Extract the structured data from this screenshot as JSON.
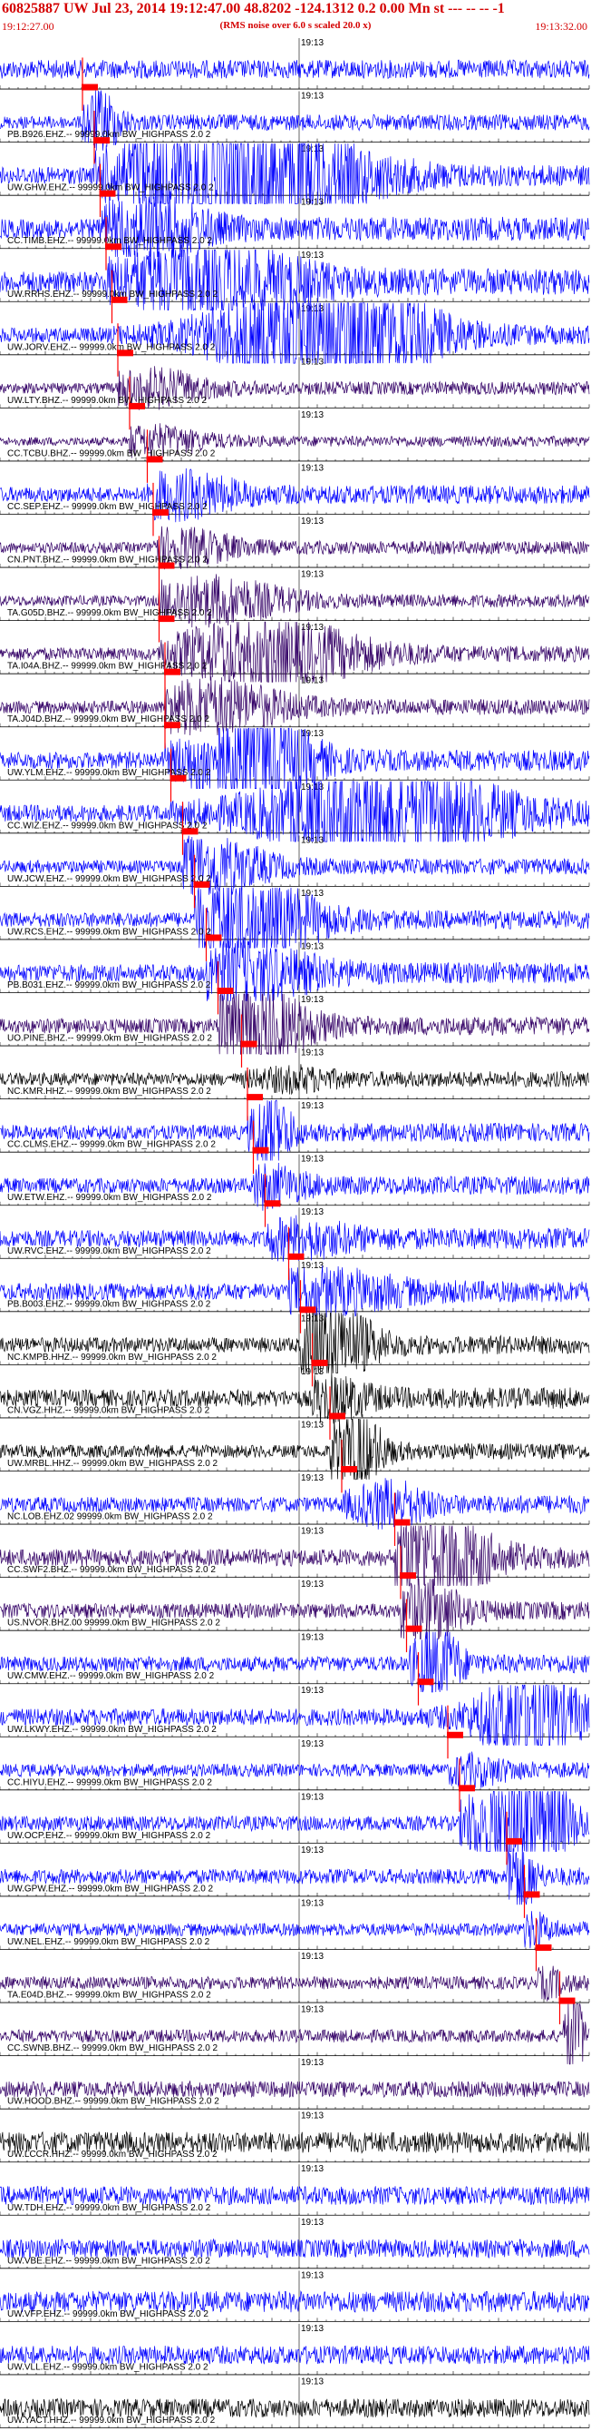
{
  "header": {
    "title": "60825887 UW Jul 23, 2014 19:12:47.00   48.8202 -124.1312  0.2 0.00 Mn st --- -- -- -1",
    "start_time": "19:12:27.00",
    "rms_note": "(RMS noise over 6.0 s scaled 20.0 x)",
    "end_time": "19:13:32.00"
  },
  "chart_data": {
    "type": "line",
    "title": "60825887 UW Jul 23, 2014 19:12:47.00   48.8202 -124.1312  0.2 0.00 Mn st --- -- -- -1",
    "xlabel": "",
    "ylabel": "",
    "time_start": "19:12:27.00",
    "time_end": "19:13:32.00",
    "mid_tick_label": "19:13",
    "colors": {
      "trace_blue": "#0000ff",
      "trace_purple": "#330066",
      "trace_black": "#000000",
      "pick": "#ff0000"
    },
    "traces": [
      {
        "label": "",
        "color": "#0000ff",
        "amp": 0.35,
        "burst": 0.0,
        "burst_pos": 0.0,
        "burst_width": 0.0,
        "pick": null
      },
      {
        "label": "PB.B926.EHZ.-- 99999.0km BW_HIGHPASS  2.0  2",
        "color": "#0000ff",
        "amp": 0.3,
        "burst": 1.1,
        "burst_pos": 0.17,
        "burst_width": 0.05,
        "pick": "0.14"
      },
      {
        "label": "UW.GHW.EHZ.-- 99999.0km BW_HIGHPASS  2.0  2",
        "color": "#0000ff",
        "amp": 0.4,
        "burst": 2.4,
        "burst_pos": 0.4,
        "burst_width": 0.3,
        "pick": "0.16"
      },
      {
        "label": "CC.TIMB.EHZ.-- 99999.0km BW_HIGHPASS  2.0  2",
        "color": "#0000ff",
        "amp": 0.45,
        "burst": 1.0,
        "burst_pos": 0.25,
        "burst_width": 0.15,
        "pick": "0.17"
      },
      {
        "label": "UW.RRHS.EHZ.-- 99999.0km BW_HIGHPASS  2.0  2",
        "color": "#0000ff",
        "amp": 0.5,
        "burst": 1.2,
        "burst_pos": 0.35,
        "burst_width": 0.25,
        "pick": "0.18"
      },
      {
        "label": "UW.JORV.EHZ.-- 99999.0km BW_HIGHPASS  2.0  2",
        "color": "#0000ff",
        "amp": 0.35,
        "burst": 2.6,
        "burst_pos": 0.55,
        "burst_width": 0.25,
        "pick": "0.19"
      },
      {
        "label": "UW.LTY.BHZ.-- 99999.0km BW_HIGHPASS  2.0  2",
        "color": "#330066",
        "amp": 0.25,
        "burst": 0.6,
        "burst_pos": 0.25,
        "burst_width": 0.15,
        "pick": "0.2"
      },
      {
        "label": "CC.TCBU.BHZ.-- 99999.0km BW_HIGHPASS  2.0  2",
        "color": "#330066",
        "amp": 0.2,
        "burst": 0.5,
        "burst_pos": 0.25,
        "burst_width": 0.15,
        "pick": "0.22"
      },
      {
        "label": "CC.SEP.EHZ.-- 99999.0km BW_HIGHPASS  2.0  2",
        "color": "#0000ff",
        "amp": 0.35,
        "burst": 0.7,
        "burst_pos": 0.3,
        "burst_width": 0.15,
        "pick": "0.25"
      },
      {
        "label": "CN.PNT.BHZ.-- 99999.0km BW_HIGHPASS  2.0  2",
        "color": "#330066",
        "amp": 0.25,
        "burst": 0.6,
        "burst_pos": 0.3,
        "burst_width": 0.15,
        "pick": "0.26"
      },
      {
        "label": "TA.G05D.BHZ.-- 99999.0km BW_HIGHPASS  2.0  2",
        "color": "#330066",
        "amp": 0.25,
        "burst": 0.8,
        "burst_pos": 0.35,
        "burst_width": 0.2,
        "pick": "0.27"
      },
      {
        "label": "TA.I04A.BHZ.-- 99999.0km BW_HIGHPASS  2.0  2",
        "color": "#330066",
        "amp": 0.3,
        "burst": 1.2,
        "burst_pos": 0.45,
        "burst_width": 0.25,
        "pick": "0.27"
      },
      {
        "label": "TA.J04D.BHZ.-- 99999.0km BW_HIGHPASS  2.0  2",
        "color": "#330066",
        "amp": 0.3,
        "burst": 0.9,
        "burst_pos": 0.35,
        "burst_width": 0.2,
        "pick": "0.28"
      },
      {
        "label": "UW.YLM.EHZ.-- 99999.0km BW_HIGHPASS  2.0  2",
        "color": "#0000ff",
        "amp": 0.4,
        "burst": 2.0,
        "burst_pos": 0.42,
        "burst_width": 0.15,
        "pick": "0.28"
      },
      {
        "label": "CC.WIZ.EHZ.-- 99999.0km BW_HIGHPASS  2.0  2",
        "color": "#0000ff",
        "amp": 0.4,
        "burst": 1.8,
        "burst_pos": 0.65,
        "burst_width": 0.3,
        "pick": "0.29"
      },
      {
        "label": "UW.JCW.EHZ.-- 99999.0km BW_HIGHPASS  2.0  2",
        "color": "#0000ff",
        "amp": 0.3,
        "burst": 1.0,
        "burst_pos": 0.35,
        "burst_width": 0.15,
        "pick": "0.31"
      },
      {
        "label": "UW.RCS.EHZ.-- 99999.0km BW_HIGHPASS  2.0  2",
        "color": "#0000ff",
        "amp": 0.35,
        "burst": 1.6,
        "burst_pos": 0.4,
        "burst_width": 0.2,
        "pick": "0.33"
      },
      {
        "label": "PB.B031.EHZ.-- 99999.0km BW_HIGHPASS  2.0  2",
        "color": "#0000ff",
        "amp": 0.4,
        "burst": 1.0,
        "burst_pos": 0.4,
        "burst_width": 0.2,
        "pick": "0.35"
      },
      {
        "label": "UO.PINE.BHZ.-- 99999.0km BW_HIGHPASS  2.0  2",
        "color": "#330066",
        "amp": 0.35,
        "burst": 1.4,
        "burst_pos": 0.42,
        "burst_width": 0.15,
        "pick": "0.37"
      },
      {
        "label": "NC.KMR.HHZ.-- 99999.0km BW_HIGHPASS  2.0  2",
        "color": "#000000",
        "amp": 0.3,
        "burst": 0.3,
        "burst_pos": 0.5,
        "burst_width": 0.1,
        "pick": "0.41"
      },
      {
        "label": "CC.CLMS.EHZ.-- 99999.0km BW_HIGHPASS  2.0  2",
        "color": "#0000ff",
        "amp": 0.35,
        "burst": 1.4,
        "burst_pos": 0.46,
        "burst_width": 0.05,
        "pick": "0.42"
      },
      {
        "label": "UW.ETW.EHZ.-- 99999.0km BW_HIGHPASS  2.0  2",
        "color": "#0000ff",
        "amp": 0.35,
        "burst": 0.6,
        "burst_pos": 0.45,
        "burst_width": 0.1,
        "pick": "0.43"
      },
      {
        "label": "UW.RVC.EHZ.-- 99999.0km BW_HIGHPASS  2.0  2",
        "color": "#0000ff",
        "amp": 0.4,
        "burst": 0.5,
        "burst_pos": 0.5,
        "burst_width": 0.15,
        "pick": "0.45"
      },
      {
        "label": "PB.B003.EHZ.-- 99999.0km BW_HIGHPASS  2.0  2",
        "color": "#0000ff",
        "amp": 0.4,
        "burst": 0.6,
        "burst_pos": 0.55,
        "burst_width": 0.2,
        "pick": "0.49"
      },
      {
        "label": "NC.KMPB.HHZ.-- 99999.0km BW_HIGHPASS  2.0  2",
        "color": "#000000",
        "amp": 0.35,
        "burst": 1.6,
        "burst_pos": 0.55,
        "burst_width": 0.12,
        "pick": "0.51"
      },
      {
        "label": "CN.VGZ.HHZ.-- 99999.0km BW_HIGHPASS  2.0  2",
        "color": "#000000",
        "amp": 0.4,
        "burst": 0.6,
        "burst_pos": 0.56,
        "burst_width": 0.1,
        "pick": "0.53"
      },
      {
        "label": "UW.MRBL.HHZ.-- 99999.0km BW_HIGHPASS  2.0  2",
        "color": "#000000",
        "amp": 0.3,
        "burst": 1.6,
        "burst_pos": 0.6,
        "burst_width": 0.07,
        "pick": "0.56"
      },
      {
        "label": "NC.LOB.EHZ.02 99999.0km BW_HIGHPASS  2.0  2",
        "color": "#0000ff",
        "amp": 0.35,
        "burst": 0.7,
        "burst_pos": 0.66,
        "burst_width": 0.1,
        "pick": "0.58"
      },
      {
        "label": "CC.SWF2.BHZ.-- 99999.0km BW_HIGHPASS  2.0  2",
        "color": "#330066",
        "amp": 0.4,
        "burst": 1.6,
        "burst_pos": 0.73,
        "burst_width": 0.15,
        "pick": "0.67"
      },
      {
        "label": "US.NVOR.BHZ.00 99999.0km BW_HIGHPASS  2.0  2",
        "color": "#330066",
        "amp": 0.35,
        "burst": 1.0,
        "burst_pos": 0.72,
        "burst_width": 0.1,
        "pick": "0.68"
      },
      {
        "label": "UW.CMW.EHZ.-- 99999.0km BW_HIGHPASS  2.0  2",
        "color": "#0000ff",
        "amp": 0.35,
        "burst": 1.4,
        "burst_pos": 0.74,
        "burst_width": 0.06,
        "pick": "0.69"
      },
      {
        "label": "UW.LKWY.EHZ.-- 99999.0km BW_HIGHPASS  2.0  2",
        "color": "#0000ff",
        "amp": 0.4,
        "burst": 1.8,
        "burst_pos": 0.9,
        "burst_width": 0.12,
        "pick": "0.71"
      },
      {
        "label": "CC.HIYU.EHZ.-- 99999.0km BW_HIGHPASS  2.0  2",
        "color": "#0000ff",
        "amp": 0.3,
        "burst": 0.4,
        "burst_pos": 0.8,
        "burst_width": 0.1,
        "pick": "0.76"
      },
      {
        "label": "UW.OCP.EHZ.-- 99999.0km BW_HIGHPASS  2.0  2",
        "color": "#0000ff",
        "amp": 0.35,
        "burst": 2.4,
        "burst_pos": 0.88,
        "burst_width": 0.12,
        "pick": "0.78"
      },
      {
        "label": "UW.GPW.EHZ.-- 99999.0km BW_HIGHPASS  2.0  2",
        "color": "#0000ff",
        "amp": 0.35,
        "burst": 1.4,
        "burst_pos": 0.88,
        "burst_width": 0.04,
        "pick": "0.86"
      },
      {
        "label": "UW.NEL.EHZ.-- 99999.0km BW_HIGHPASS  2.0  2",
        "color": "#0000ff",
        "amp": 0.3,
        "burst": 0.5,
        "burst_pos": 0.9,
        "burst_width": 0.05,
        "pick": "0.89"
      },
      {
        "label": "TA.E04D.BHZ.-- 99999.0km BW_HIGHPASS  2.0  2",
        "color": "#330066",
        "amp": 0.3,
        "burst": 0.4,
        "burst_pos": 0.93,
        "burst_width": 0.04,
        "pick": "0.91"
      },
      {
        "label": "CC.SWNB.BHZ.-- 99999.0km BW_HIGHPASS  2.0  2",
        "color": "#330066",
        "amp": 0.3,
        "burst": 2.4,
        "burst_pos": 0.975,
        "burst_width": 0.02,
        "pick": "0.95"
      },
      {
        "label": "UW.HOOD.BHZ.-- 99999.0km BW_HIGHPASS  2.0  2",
        "color": "#330066",
        "amp": 0.3,
        "burst": 0.0,
        "burst_pos": 0.0,
        "burst_width": 0.0,
        "pick": null
      },
      {
        "label": "UW.LCCR.HHZ.-- 99999.0km BW_HIGHPASS  2.0  2",
        "color": "#000000",
        "amp": 0.4,
        "burst": 0.0,
        "burst_pos": 0.0,
        "burst_width": 0.0,
        "pick": null
      },
      {
        "label": "UW.TDH.EHZ.-- 99999.0km BW_HIGHPASS  2.0  2",
        "color": "#0000ff",
        "amp": 0.35,
        "burst": 0.0,
        "burst_pos": 0.0,
        "burst_width": 0.0,
        "pick": null
      },
      {
        "label": "UW.VBE.EHZ.-- 99999.0km BW_HIGHPASS  2.0  2",
        "color": "#0000ff",
        "amp": 0.35,
        "burst": 0.0,
        "burst_pos": 0.0,
        "burst_width": 0.0,
        "pick": null
      },
      {
        "label": "UW.VFP.EHZ.-- 99999.0km BW_HIGHPASS  2.0  2",
        "color": "#0000ff",
        "amp": 0.4,
        "burst": 0.0,
        "burst_pos": 0.0,
        "burst_width": 0.0,
        "pick": null
      },
      {
        "label": "UW.VLL.EHZ.-- 99999.0km BW_HIGHPASS  2.0  2",
        "color": "#0000ff",
        "amp": 0.35,
        "burst": 0.0,
        "burst_pos": 0.0,
        "burst_width": 0.0,
        "pick": null
      },
      {
        "label": "UW.YACT.HHZ.-- 99999.0km BW_HIGHPASS  2.0  2",
        "color": "#000000",
        "amp": 0.35,
        "burst": 0.0,
        "burst_pos": 0.0,
        "burst_width": 0.0,
        "pick": null
      }
    ]
  }
}
